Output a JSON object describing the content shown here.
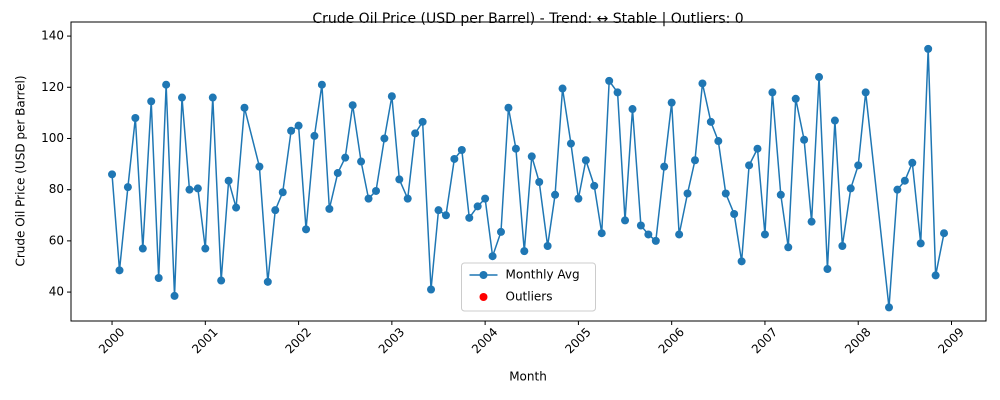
{
  "chart_data": {
    "type": "line",
    "title": "Crude Oil Price (USD per Barrel) - Trend: ↔ Stable | Outliers: 0",
    "x_label": "Month",
    "y_label": "Crude Oil Price (USD per Barrel)",
    "xlim": [
      1999.56,
      2009.37
    ],
    "ylim": [
      28.7,
      145.5
    ],
    "xticks": [
      2000,
      2001,
      2002,
      2003,
      2004,
      2005,
      2006,
      2007,
      2008,
      2009
    ],
    "yticks": [
      40,
      60,
      80,
      100,
      120,
      140
    ],
    "legend": "lower center",
    "series": [
      {
        "name": "Monthly Avg",
        "color": "#1f77b4",
        "x": [
          2000,
          2000.08,
          2000.17,
          2000.25,
          2000.33,
          2000.42,
          2000.5,
          2000.58,
          2000.67,
          2000.75,
          2000.83,
          2000.92,
          2001,
          2001.08,
          2001.17,
          2001.25,
          2001.33,
          2001.42,
          2001.58,
          2001.67,
          2001.75,
          2001.83,
          2001.92,
          2002,
          2002.08,
          2002.17,
          2002.25,
          2002.33,
          2002.42,
          2002.5,
          2002.58,
          2002.67,
          2002.75,
          2002.83,
          2002.92,
          2003,
          2003.08,
          2003.17,
          2003.25,
          2003.33,
          2003.42,
          2003.5,
          2003.58,
          2003.67,
          2003.75,
          2003.83,
          2003.92,
          2004,
          2004.08,
          2004.17,
          2004.25,
          2004.33,
          2004.42,
          2004.5,
          2004.58,
          2004.67,
          2004.75,
          2004.83,
          2004.92,
          2005,
          2005.08,
          2005.17,
          2005.25,
          2005.33,
          2005.42,
          2005.5,
          2005.58,
          2005.67,
          2005.75,
          2005.83,
          2005.92,
          2006,
          2006.08,
          2006.17,
          2006.25,
          2006.33,
          2006.42,
          2006.5,
          2006.58,
          2006.67,
          2006.75,
          2006.83,
          2006.92,
          2007,
          2007.08,
          2007.17,
          2007.25,
          2007.33,
          2007.42,
          2007.5,
          2007.58,
          2007.67,
          2007.75,
          2007.83,
          2007.92,
          2008,
          2008.08,
          2008.33,
          2008.42,
          2008.5,
          2008.58,
          2008.67,
          2008.75,
          2008.83,
          2008.92
        ],
        "values": [
          86,
          48.5,
          81,
          108,
          57,
          114.5,
          45.5,
          121,
          38.5,
          116,
          80,
          80.5,
          57,
          116,
          44.5,
          83.5,
          73,
          112,
          89,
          44,
          72,
          79,
          103,
          105,
          64.5,
          101,
          121,
          72.5,
          86.5,
          92.5,
          113,
          91,
          76.5,
          79.5,
          100,
          116.5,
          84,
          76.5,
          102,
          106.5,
          41,
          72,
          70,
          92,
          95.5,
          69,
          73.5,
          76.5,
          54,
          63.5,
          112,
          96,
          56,
          93,
          83,
          58,
          78,
          119.5,
          98,
          76.5,
          91.5,
          81.5,
          63,
          122.5,
          118,
          68,
          111.5,
          66,
          62.5,
          60,
          89,
          114,
          62.5,
          78.5,
          91.5,
          121.5,
          106.5,
          99,
          78.5,
          70.5,
          52,
          89.5,
          96,
          62.5,
          118,
          78,
          57.5,
          115.5,
          99.5,
          67.5,
          124,
          49,
          107,
          58,
          80.5,
          89.5,
          118,
          34,
          80,
          83.5,
          90.5,
          59,
          135,
          46.5,
          63
        ]
      },
      {
        "name": "Outliers",
        "color": "#ff0000",
        "x": [],
        "values": []
      }
    ]
  }
}
